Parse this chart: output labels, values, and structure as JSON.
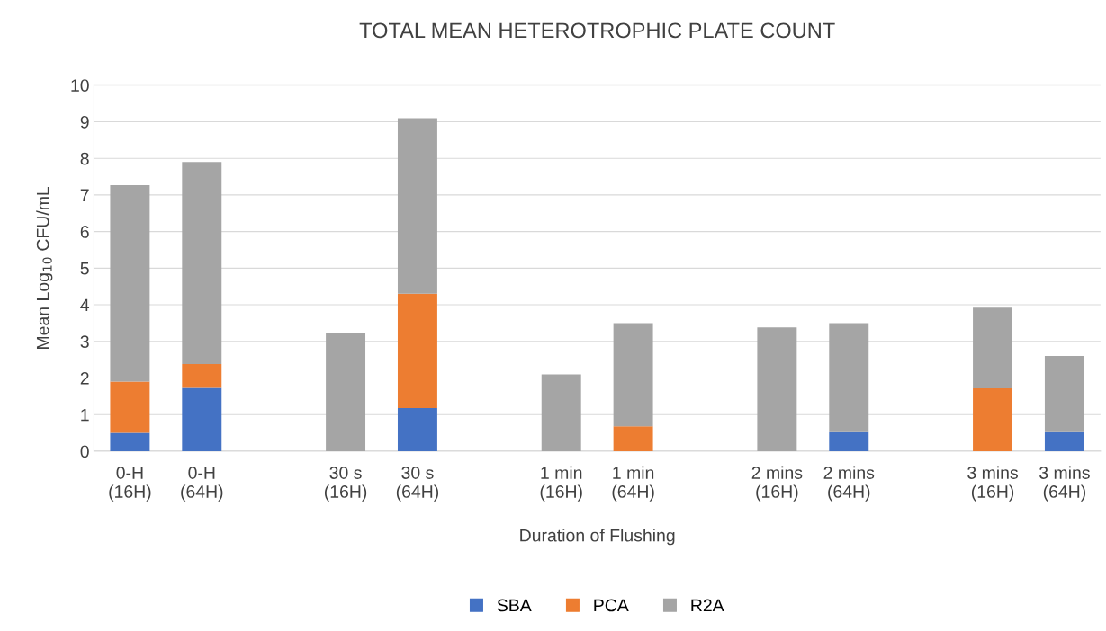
{
  "chart_data": {
    "type": "bar",
    "title": "TOTAL MEAN HETEROTROPHIC PLATE COUNT",
    "xlabel": "Duration of Flushing",
    "ylabel": "Mean Log$_{10}$ CFU/mL",
    "categories": [
      "0-H\n(16H)",
      "0-H\n(64H)",
      null,
      "30 s\n(16H)",
      "30 s\n(64H)",
      null,
      "1 min\n(16H)",
      "1 min\n(64H)",
      null,
      "2 mins\n(16H)",
      "2 mins\n(64H)",
      null,
      "3 mins\n(16H)",
      "3 mins\n(64H)"
    ],
    "stacked": true,
    "series": [
      {
        "name": "SBA",
        "color": "#4472c4",
        "values": [
          0.5,
          1.73,
          null,
          0,
          1.18,
          null,
          0,
          0,
          null,
          0,
          0.52,
          null,
          0,
          0.52
        ]
      },
      {
        "name": "PCA",
        "color": "#ed7d31",
        "values": [
          1.4,
          0.65,
          null,
          0,
          3.12,
          null,
          0,
          0.68,
          null,
          0,
          0,
          null,
          1.72,
          0
        ]
      },
      {
        "name": "R2A",
        "color": "#a5a5a5",
        "values": [
          5.37,
          5.52,
          null,
          3.22,
          4.8,
          null,
          2.1,
          2.82,
          null,
          3.38,
          2.98,
          null,
          2.2,
          2.08
        ]
      }
    ],
    "ylim": [
      0,
      10
    ],
    "yticks": [
      0,
      1,
      2,
      3,
      4,
      5,
      6,
      7,
      8,
      9,
      10
    ],
    "grid": "y",
    "legend": "bottom"
  }
}
